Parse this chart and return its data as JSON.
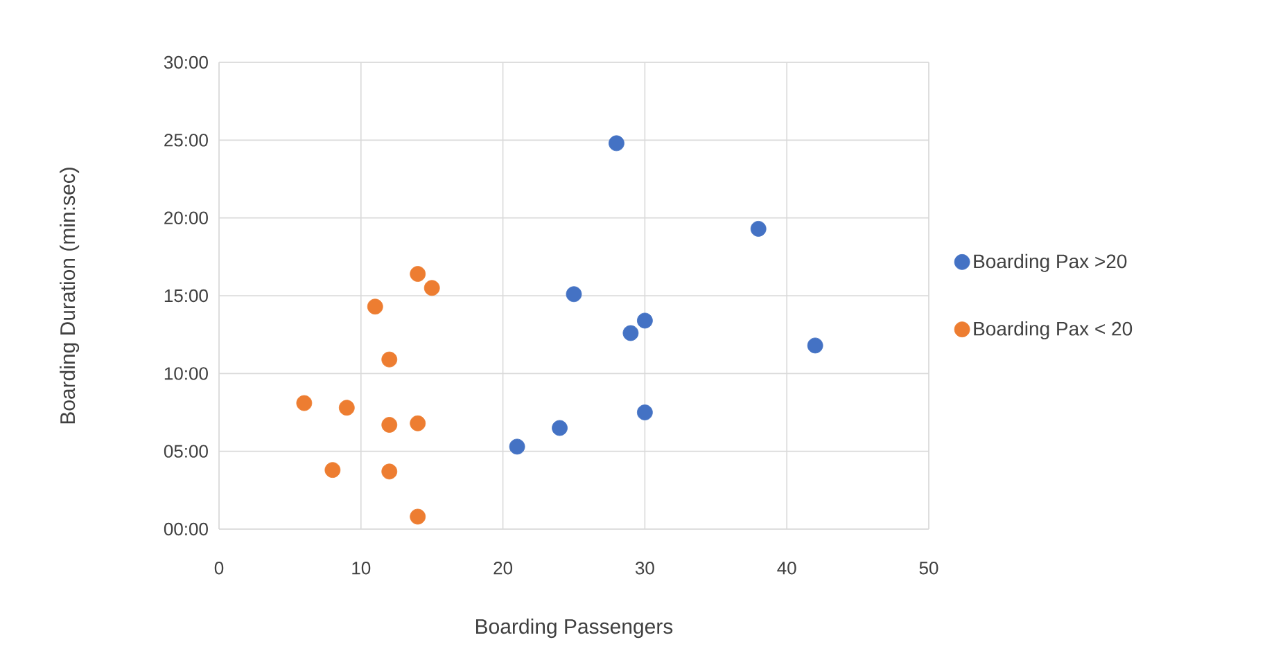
{
  "chart_data": {
    "type": "scatter",
    "xlabel": "Boarding Passengers",
    "ylabel": "Boarding Duration (min:sec)",
    "xlim": [
      0,
      50
    ],
    "xticks": [
      0,
      10,
      20,
      30,
      40,
      50
    ],
    "ylim": [
      0,
      30
    ],
    "yticks": [
      {
        "value": 0,
        "label": "00:00"
      },
      {
        "value": 5,
        "label": "05:00"
      },
      {
        "value": 10,
        "label": "10:00"
      },
      {
        "value": 15,
        "label": "15:00"
      },
      {
        "value": 20,
        "label": "20:00"
      },
      {
        "value": 25,
        "label": "25:00"
      },
      {
        "value": 30,
        "label": "30:00"
      }
    ],
    "grid": true,
    "legend": "right",
    "marker": "circle",
    "series": [
      {
        "name": "Boarding Pax >20",
        "color": "#4472c4",
        "x": [
          28,
          38,
          25,
          30,
          29,
          42,
          30,
          24,
          21
        ],
        "values": [
          24.8,
          19.3,
          15.1,
          13.4,
          12.6,
          11.8,
          7.5,
          6.5,
          5.3
        ]
      },
      {
        "name": "Boarding Pax < 20",
        "color": "#ed7d31",
        "x": [
          14,
          15,
          11,
          12,
          6,
          9,
          12,
          14,
          8,
          12,
          14
        ],
        "values": [
          16.4,
          15.5,
          14.3,
          10.9,
          8.1,
          7.8,
          6.7,
          6.8,
          3.8,
          3.7,
          0.8
        ]
      }
    ]
  }
}
